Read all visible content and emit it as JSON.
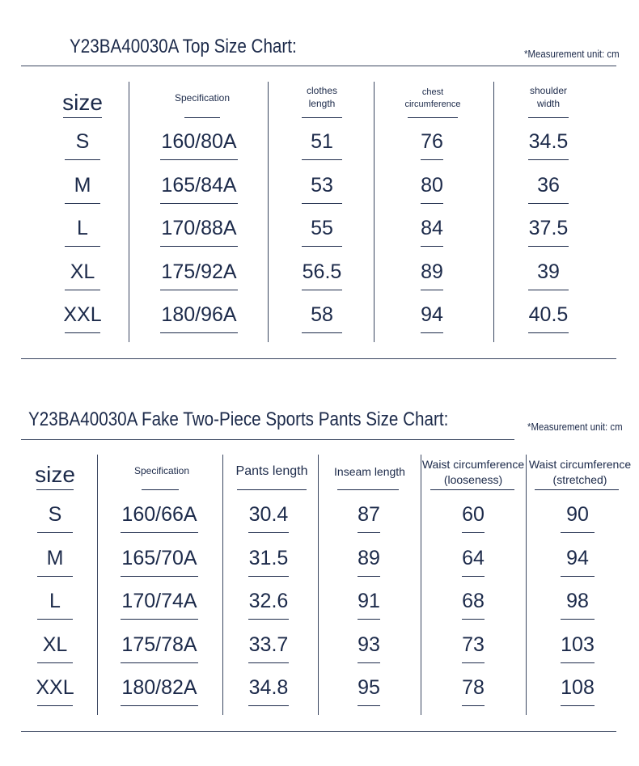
{
  "top_chart": {
    "title": "Y23BA40030A Top Size Chart:",
    "unit_note": "*Measurement unit: cm",
    "headers": {
      "size": "size",
      "spec": "Specification",
      "length_1": "clothes",
      "length_2": "length",
      "chest_1": "chest",
      "chest_2": "circumference",
      "shoulder_1": "shoulder",
      "shoulder_2": "width"
    },
    "rows": [
      {
        "size": "S",
        "spec": "160/80A",
        "length": "51",
        "chest": "76",
        "shoulder": "34.5"
      },
      {
        "size": "M",
        "spec": "165/84A",
        "length": "53",
        "chest": "80",
        "shoulder": "36"
      },
      {
        "size": "L",
        "spec": "170/88A",
        "length": "55",
        "chest": "84",
        "shoulder": "37.5"
      },
      {
        "size": "XL",
        "spec": "175/92A",
        "length": "56.5",
        "chest": "89",
        "shoulder": "39"
      },
      {
        "size": "XXL",
        "spec": "180/96A",
        "length": "58",
        "chest": "94",
        "shoulder": "40.5"
      }
    ]
  },
  "pants_chart": {
    "title": "Y23BA40030A Fake Two-Piece Sports Pants Size Chart:",
    "unit_note": "*Measurement unit: cm",
    "headers": {
      "size": "size",
      "spec": "Specification",
      "pants_length": "Pants length",
      "inseam": "Inseam length",
      "waist_loose_1": "Waist circumference",
      "waist_loose_2": "(looseness)",
      "waist_stretch_1": "Waist circumference",
      "waist_stretch_2": "(stretched)"
    },
    "rows": [
      {
        "size": "S",
        "spec": "160/66A",
        "pants_length": "30.4",
        "inseam": "87",
        "waist_loose": "60",
        "waist_stretch": "90"
      },
      {
        "size": "M",
        "spec": "165/70A",
        "pants_length": "31.5",
        "inseam": "89",
        "waist_loose": "64",
        "waist_stretch": "94"
      },
      {
        "size": "L",
        "spec": "170/74A",
        "pants_length": "32.6",
        "inseam": "91",
        "waist_loose": "68",
        "waist_stretch": "98"
      },
      {
        "size": "XL",
        "spec": "175/78A",
        "pants_length": "33.7",
        "inseam": "93",
        "waist_loose": "73",
        "waist_stretch": "103"
      },
      {
        "size": "XXL",
        "spec": "180/82A",
        "pants_length": "34.8",
        "inseam": "95",
        "waist_loose": "78",
        "waist_stretch": "108"
      }
    ]
  }
}
